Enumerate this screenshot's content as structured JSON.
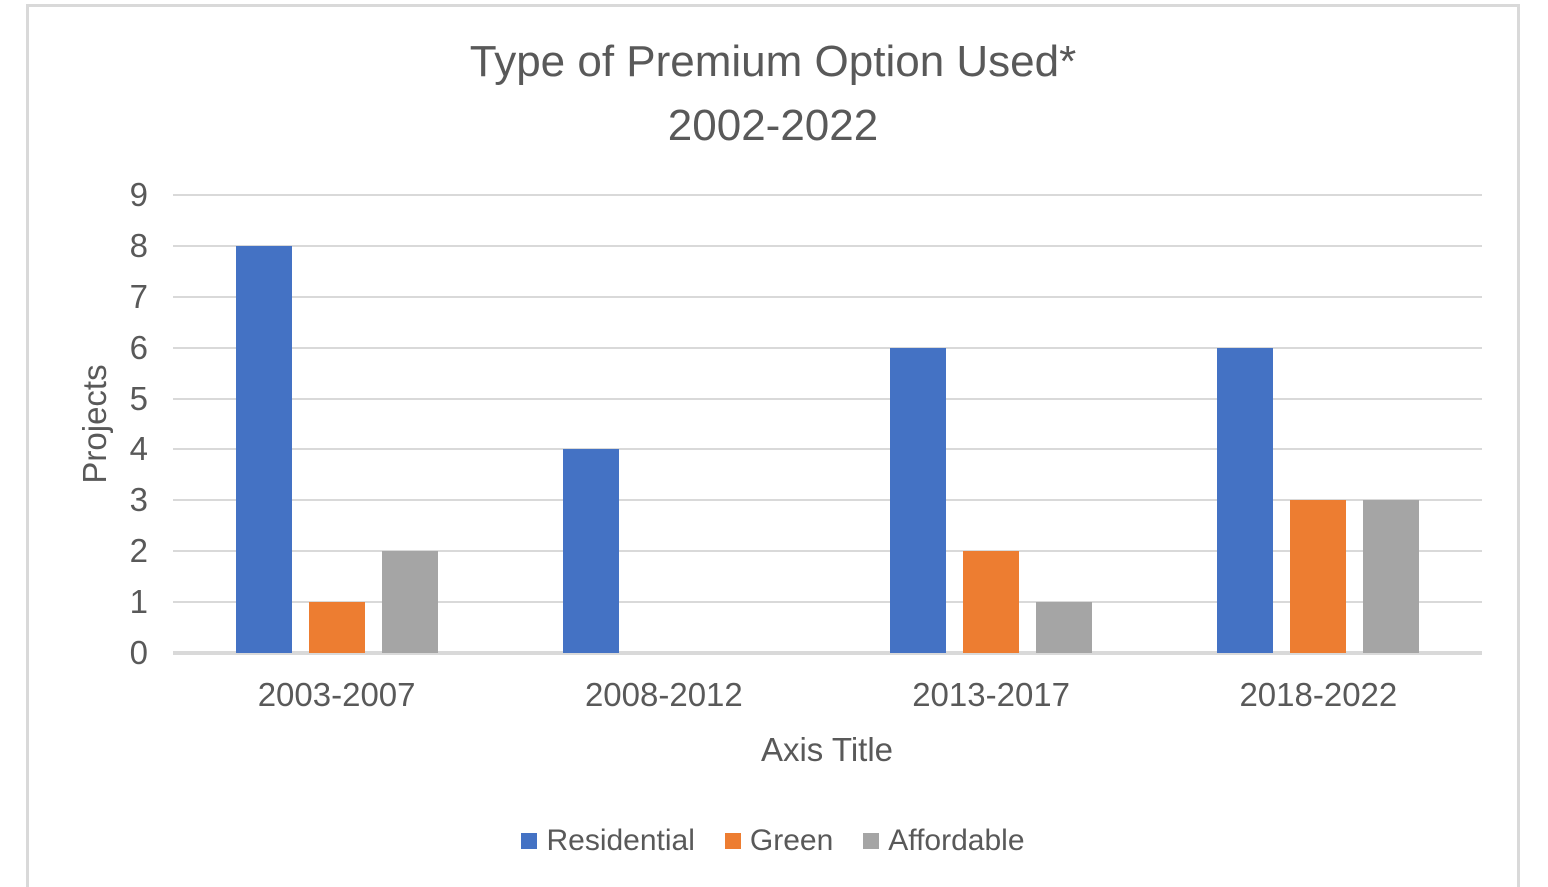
{
  "chart_data": {
    "type": "bar",
    "title": "Type of Premium Option Used*",
    "title_line2": "2002-2022",
    "xlabel": "Axis Title",
    "ylabel": "Projects",
    "categories": [
      "2003-2007",
      "2008-2012",
      "2013-2017",
      "2018-2022"
    ],
    "series": [
      {
        "name": "Residential",
        "color": "#4472C4",
        "values": [
          8,
          4,
          6,
          6
        ]
      },
      {
        "name": "Green",
        "color": "#ED7D31",
        "values": [
          1,
          0,
          2,
          3
        ]
      },
      {
        "name": "Affordable",
        "color": "#A5A5A5",
        "values": [
          2,
          0,
          1,
          3
        ]
      }
    ],
    "ylim": [
      0,
      9
    ],
    "ytick_step": 1,
    "yticks": [
      0,
      1,
      2,
      3,
      4,
      5,
      6,
      7,
      8,
      9
    ],
    "grid": "horizontal-gridlines",
    "legend_position": "bottom"
  },
  "colors": {
    "text": "#595959",
    "gridline": "#D9D9D9",
    "axis_line": "#D9D9D9",
    "frame_border": "#D9D9D9",
    "background": "#FFFFFF"
  }
}
